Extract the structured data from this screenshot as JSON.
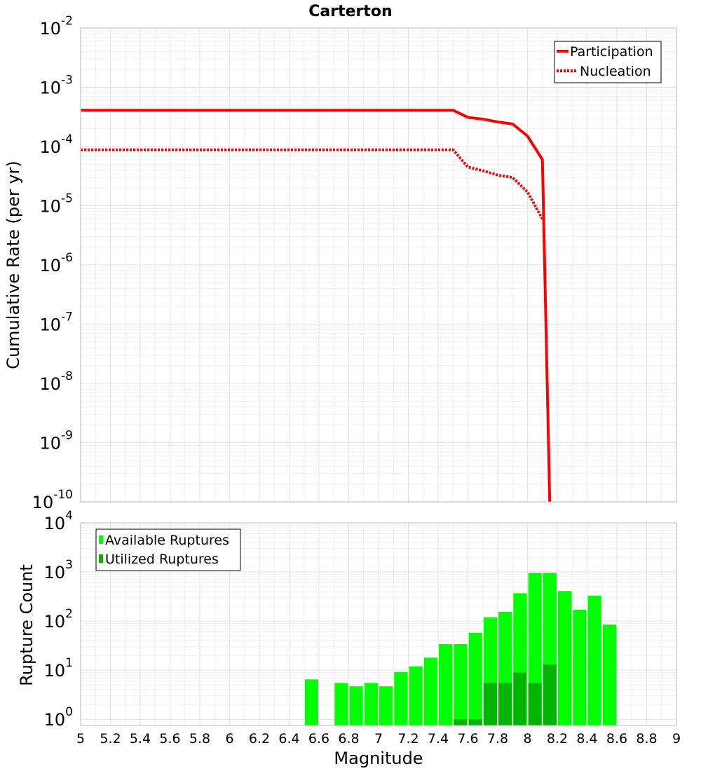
{
  "chart_data": [
    {
      "type": "line",
      "title": "Carterton",
      "ylabel": "Cumulative Rate (per yr)",
      "xlabel": "",
      "xlim": [
        5,
        9
      ],
      "ylim": [
        1e-10,
        0.01
      ],
      "yscale": "log",
      "grid": true,
      "legend": "top-right",
      "series": [
        {
          "name": "Participation",
          "style": "solid",
          "color": "#ff0000",
          "x": [
            5.0,
            7.5,
            7.6,
            7.7,
            7.8,
            7.9,
            8.0,
            8.1,
            8.15
          ],
          "y": [
            0.00041,
            0.00041,
            0.00031,
            0.00029,
            0.00026,
            0.00024,
            0.00015,
            6e-05,
            8e-11
          ]
        },
        {
          "name": "Nucleation",
          "style": "dotted",
          "color": "#ff0000",
          "x": [
            5.0,
            7.5,
            7.6,
            7.7,
            7.8,
            7.9,
            8.0,
            8.1
          ],
          "y": [
            8.8e-05,
            8.8e-05,
            4.5e-05,
            3.9e-05,
            3.3e-05,
            3e-05,
            1.7e-05,
            6e-06
          ]
        }
      ]
    },
    {
      "type": "bar",
      "title": "",
      "xlabel": "Magnitude",
      "ylabel": "Rupture Count",
      "xlim": [
        5,
        9
      ],
      "ylim": [
        0.75,
        10000
      ],
      "yscale": "log",
      "grid": true,
      "legend": "top-left",
      "bin_width": 0.1,
      "x": [
        6.55,
        6.75,
        6.85,
        6.95,
        7.05,
        7.15,
        7.25,
        7.35,
        7.45,
        7.55,
        7.65,
        7.75,
        7.85,
        7.95,
        8.05,
        8.15,
        8.25,
        8.35,
        8.45,
        8.55
      ],
      "series": [
        {
          "name": "Available Ruptures",
          "color": "#00ff00",
          "values": [
            6.5,
            5.5,
            4.7,
            5.5,
            4.7,
            9.2,
            12,
            18,
            34,
            34,
            58,
            120,
            155,
            370,
            960,
            960,
            410,
            170,
            330,
            85
          ]
        },
        {
          "name": "Utilized Ruptures",
          "color": "#00b400",
          "values": [
            0,
            0,
            0,
            0,
            0,
            0,
            0,
            0,
            0,
            1,
            1,
            5.5,
            5.5,
            9,
            5.5,
            13,
            0,
            0,
            0,
            0
          ]
        }
      ]
    }
  ],
  "axes": {
    "x_ticks": [
      "5",
      "5.2",
      "5.4",
      "5.6",
      "5.8",
      "6",
      "6.2",
      "6.4",
      "6.6",
      "6.8",
      "7",
      "7.2",
      "7.4",
      "7.6",
      "7.8",
      "8",
      "8.2",
      "8.4",
      "8.6",
      "8.8",
      "9"
    ],
    "top_y_ticks": [
      {
        "base": "10",
        "exp": "-2"
      },
      {
        "base": "10",
        "exp": "-3"
      },
      {
        "base": "10",
        "exp": "-4"
      },
      {
        "base": "10",
        "exp": "-5"
      },
      {
        "base": "10",
        "exp": "-6"
      },
      {
        "base": "10",
        "exp": "-7"
      },
      {
        "base": "10",
        "exp": "-8"
      },
      {
        "base": "10",
        "exp": "-9"
      },
      {
        "base": "10",
        "exp": "-10"
      }
    ],
    "bottom_y_ticks": [
      {
        "base": "10",
        "exp": "4"
      },
      {
        "base": "10",
        "exp": "3"
      },
      {
        "base": "10",
        "exp": "2"
      },
      {
        "base": "10",
        "exp": "1"
      },
      {
        "base": "10",
        "exp": "0"
      }
    ]
  }
}
